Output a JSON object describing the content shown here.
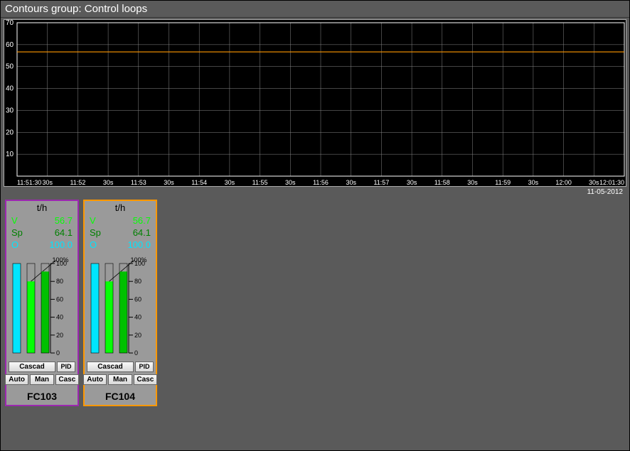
{
  "title": "Contours group: Control loops",
  "chart": {
    "type": "line",
    "background": "#000000",
    "grid_color": "#888888",
    "axis_color": "#ffffff",
    "text_color": "#ffffff",
    "ylim": [
      0,
      70
    ],
    "yticks": [
      10,
      20,
      30,
      40,
      50,
      60,
      70
    ],
    "xticks": [
      "11:51:30",
      "30s",
      "11:52",
      "30s",
      "11:53",
      "30s",
      "11:54",
      "30s",
      "11:55",
      "30s",
      "11:56",
      "30s",
      "11:57",
      "30s",
      "11:58",
      "30s",
      "11:59",
      "30s",
      "12:00",
      "30s",
      "12:01:30"
    ],
    "date": "11-05-2012",
    "series": [
      {
        "color": "#ff9800",
        "width": 1.2,
        "value": 56.7
      }
    ]
  },
  "faceplates": [
    {
      "border_color": "#9c27b0",
      "units": "t/h",
      "V": "56.7",
      "Sp": "64.1",
      "O": "100.0",
      "bars": {
        "pct_label": "100%",
        "ticks": [
          0,
          20,
          40,
          60,
          80,
          100
        ],
        "bar1": {
          "color": "#00e5ff",
          "pct": 100
        },
        "bar2": {
          "color": "#06ff06",
          "pct": 80
        },
        "bar3": {
          "color": "#00c000",
          "pct": 91
        }
      },
      "mode": "Cascad",
      "pid_label": "PID",
      "buttons": [
        "Auto",
        "Man",
        "Casc"
      ],
      "tag": "FC103"
    },
    {
      "border_color": "#ff9800",
      "units": "t/h",
      "V": "56.7",
      "Sp": "64.1",
      "O": "100.0",
      "bars": {
        "pct_label": "100%",
        "ticks": [
          0,
          20,
          40,
          60,
          80,
          100
        ],
        "bar1": {
          "color": "#00e5ff",
          "pct": 100
        },
        "bar2": {
          "color": "#06ff06",
          "pct": 80
        },
        "bar3": {
          "color": "#00c000",
          "pct": 91
        }
      },
      "mode": "Cascad",
      "pid_label": "PID",
      "buttons": [
        "Auto",
        "Man",
        "Casc"
      ],
      "tag": "FC104"
    }
  ]
}
